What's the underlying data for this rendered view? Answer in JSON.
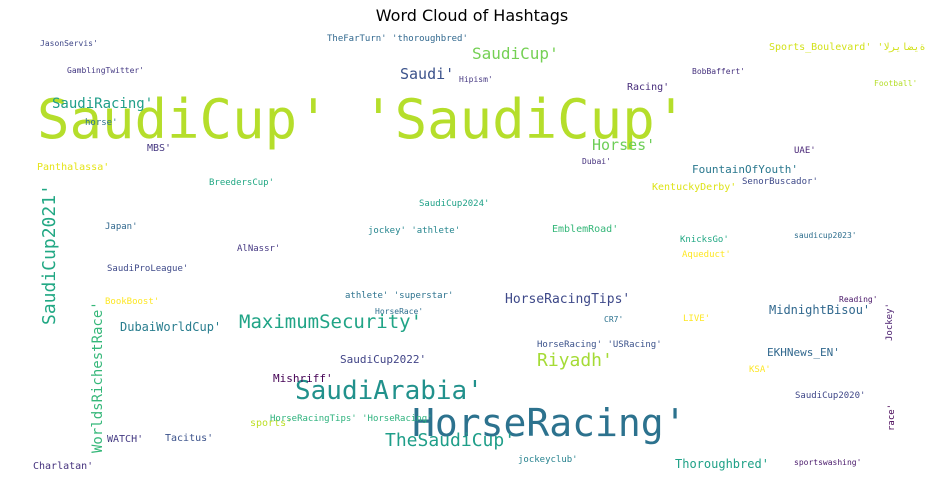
{
  "chart_data": {
    "type": "wordcloud",
    "title": "Word Cloud of Hashtags",
    "words": [
      {
        "text": "SaudiCup' 'SaudiCup'",
        "weight": 100,
        "color": "#b5de2b"
      },
      {
        "text": "HorseRacing'",
        "weight": 62,
        "color": "#2c728e"
      },
      {
        "text": "SaudiArabia'",
        "weight": 44,
        "color": "#21918c"
      },
      {
        "text": "MaximumSecurity'",
        "weight": 34,
        "color": "#20a486"
      },
      {
        "text": "TheSaudiCup'",
        "weight": 32,
        "color": "#1f9e89"
      },
      {
        "text": "Riyadh'",
        "weight": 31,
        "color": "#a5db36"
      },
      {
        "text": "SaudiCup2021'",
        "weight": 30,
        "color": "#22a884"
      },
      {
        "text": "SaudiCup'",
        "weight": 28,
        "color": "#75d054"
      },
      {
        "text": "Horses'",
        "weight": 26,
        "color": "#6ece58"
      },
      {
        "text": "Saudi'",
        "weight": 24,
        "color": "#3b528b"
      },
      {
        "text": "SaudiRacing'",
        "weight": 23,
        "color": "#1f9e89"
      },
      {
        "text": "WorldsRichestRace'",
        "weight": 22,
        "color": "#35b779"
      },
      {
        "text": "HorseRacingTips'",
        "weight": 21,
        "color": "#3e4989"
      },
      {
        "text": "SaudiCup2022'",
        "weight": 18,
        "color": "#414487"
      },
      {
        "text": "DubaiWorldCup'",
        "weight": 18,
        "color": "#287d8e"
      },
      {
        "text": "MidnightBisou'",
        "weight": 16,
        "color": "#31688e"
      },
      {
        "text": "Thoroughbred'",
        "weight": 16,
        "color": "#1fa187"
      },
      {
        "text": "EKHNews_EN'",
        "weight": 16,
        "color": "#31688e"
      },
      {
        "text": "Mishriff'",
        "weight": 16,
        "color": "#440154"
      },
      {
        "text": "FountainOfYouth'",
        "weight": 15,
        "color": "#2a788e"
      },
      {
        "text": "Sports_Boulevard' 'ةيضايرلا'",
        "weight": 14,
        "color": "#d2e21b"
      },
      {
        "text": "Panthalassa'",
        "weight": 14,
        "color": "#e5e419"
      },
      {
        "text": "Charlatan'",
        "weight": 14,
        "color": "#46337e"
      },
      {
        "text": "KentuckyDerby'",
        "weight": 14,
        "color": "#dde318"
      },
      {
        "text": "Racing'",
        "weight": 14,
        "color": "#472d7b"
      },
      {
        "text": "EmblemRoad'",
        "weight": 14,
        "color": "#35b779"
      },
      {
        "text": "SaudiCup2024'",
        "weight": 13,
        "color": "#1fa187"
      },
      {
        "text": "BreedersCup'",
        "weight": 13,
        "color": "#22a884"
      },
      {
        "text": "WATCH'",
        "weight": 13,
        "color": "#443a83"
      },
      {
        "text": "Tacitus'",
        "weight": 13,
        "color": "#3b528b"
      },
      {
        "text": "sports'",
        "weight": 13,
        "color": "#bddf26"
      },
      {
        "text": "MBS'",
        "weight": 13,
        "color": "#453781"
      },
      {
        "text": "KSA'",
        "weight": 13,
        "color": "#fde725"
      },
      {
        "text": "LIVE'",
        "weight": 12,
        "color": "#fde725"
      },
      {
        "text": "SenorBuscador'",
        "weight": 12,
        "color": "#3e4989"
      },
      {
        "text": "Japan'",
        "weight": 12,
        "color": "#31688e"
      },
      {
        "text": "HorseRacingTips' 'HorseRacing'",
        "weight": 12,
        "color": "#2db27d"
      },
      {
        "text": "HorseRacing' 'USRacing'",
        "weight": 12,
        "color": "#3b528b"
      },
      {
        "text": "GamblingTwitter'",
        "weight": 12,
        "color": "#443983"
      },
      {
        "text": "BobBaffert'",
        "weight": 12,
        "color": "#46327e"
      },
      {
        "text": "Dubai'",
        "weight": 12,
        "color": "#46327e"
      },
      {
        "text": "BookBoost'",
        "weight": 12,
        "color": "#fde725"
      },
      {
        "text": "Aqueduct'",
        "weight": 12,
        "color": "#fde725"
      },
      {
        "text": "SaudiProLeague'",
        "weight": 12,
        "color": "#3e4989"
      },
      {
        "text": "jockey' 'athlete'",
        "weight": 12,
        "color": "#25858e"
      },
      {
        "text": "KnicksGo'",
        "weight": 12,
        "color": "#22a884"
      },
      {
        "text": "jockeyclub'",
        "weight": 12,
        "color": "#26828e"
      },
      {
        "text": "sportswashing'",
        "weight": 12,
        "color": "#48186a"
      },
      {
        "text": "SaudiCup2020'",
        "weight": 12,
        "color": "#3f4788"
      },
      {
        "text": "athlete' 'superstar'",
        "weight": 12,
        "color": "#2c728e"
      },
      {
        "text": "JasonServis'",
        "weight": 11,
        "color": "#3f4788"
      },
      {
        "text": "horse'",
        "weight": 11,
        "color": "#2c728e"
      },
      {
        "text": "saudicup2023'",
        "weight": 11,
        "color": "#2e6e8e"
      },
      {
        "text": "Reading'",
        "weight": 11,
        "color": "#481668"
      },
      {
        "text": "CR7'",
        "weight": 11,
        "color": "#2c728e"
      },
      {
        "text": "AlNassr'",
        "weight": 11,
        "color": "#453882"
      },
      {
        "text": "HorseRace'",
        "weight": 11,
        "color": "#2e6e8e"
      },
      {
        "text": "UAE'",
        "weight": 11,
        "color": "#482576"
      },
      {
        "text": "Football'",
        "weight": 11,
        "color": "#b5de2b"
      },
      {
        "text": "TheFarTurn' 'thoroughbred'",
        "weight": 10,
        "color": "#31688e"
      },
      {
        "text": "Hipism'",
        "weight": 10,
        "color": "#453781"
      },
      {
        "text": "Jockey'",
        "weight": 10,
        "color": "#481b6d"
      },
      {
        "text": "race'",
        "weight": 10,
        "color": "#440154"
      }
    ]
  }
}
